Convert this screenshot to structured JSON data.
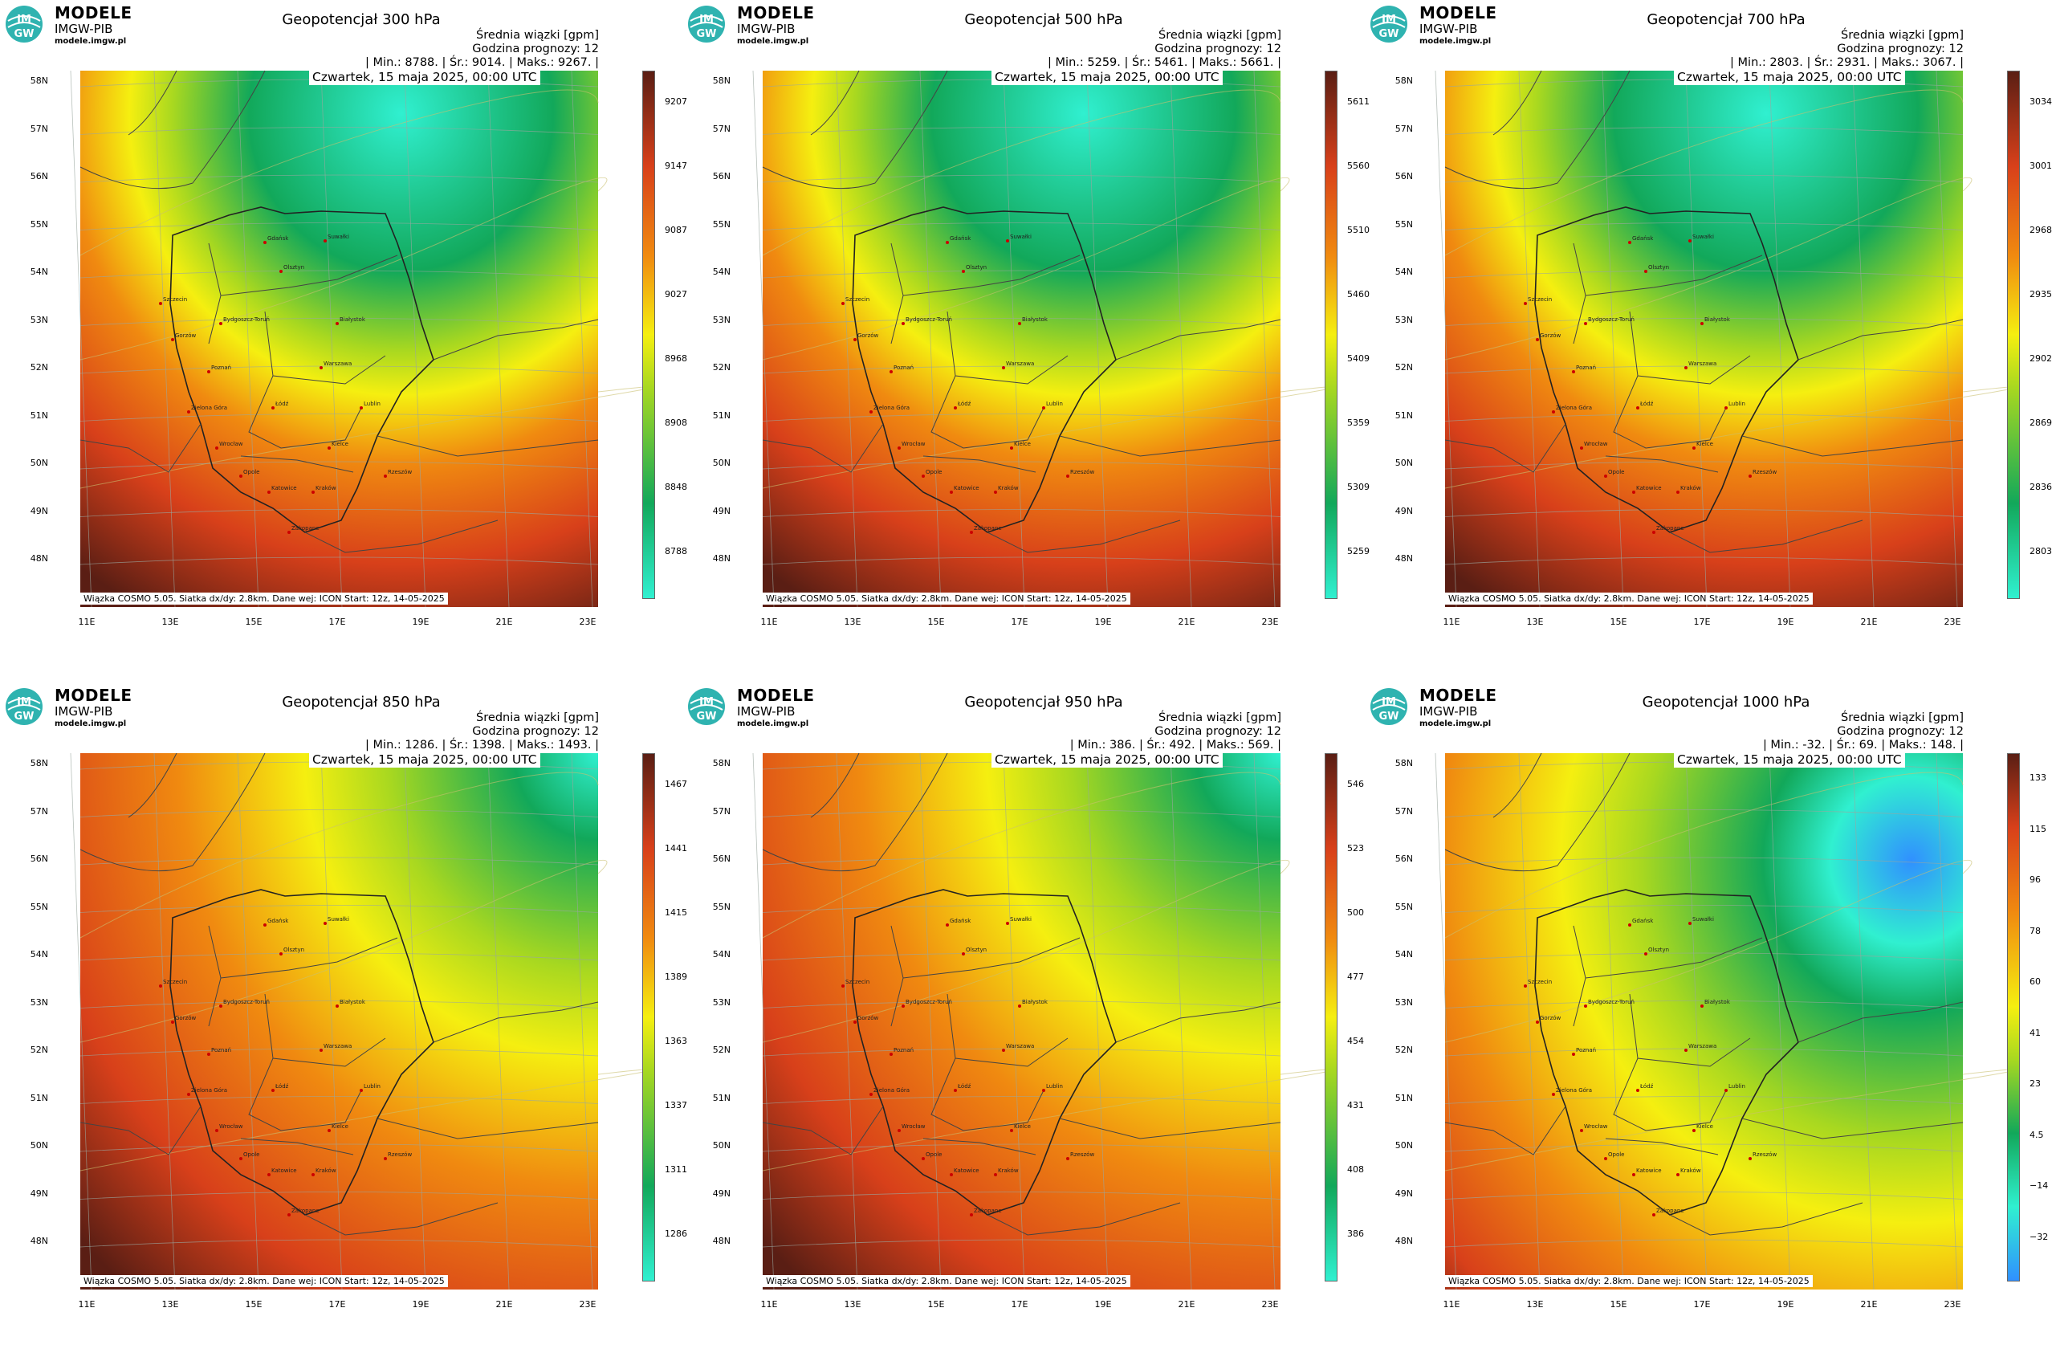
{
  "brand": {
    "name": "MODELE",
    "org": "IMGW-PIB",
    "url": "modele.imgw.pl",
    "logo_text_top": "IM",
    "logo_text_bottom": "GW"
  },
  "common": {
    "subtitle": "Średnia wiązki [gpm]",
    "forecast_hour": "Godzina prognozy: 12",
    "date": "Czwartek, 15 maja 2025, 00:00 UTC",
    "footer": "Wiązka COSMO 5.05. Siatka dx/dy: 2.8km. Dane wej: ICON Start: 12z, 14-05-2025",
    "lat_labels": [
      "58N",
      "57N",
      "56N",
      "55N",
      "54N",
      "53N",
      "52N",
      "51N",
      "50N",
      "49N",
      "48N"
    ],
    "lon_labels": [
      "11E",
      "13E",
      "15E",
      "17E",
      "19E",
      "21E",
      "23E"
    ]
  },
  "colors": {
    "brown": "#5a1e14",
    "red": "#d8401a",
    "orange": "#f08a10",
    "yellow": "#f5ef10",
    "green": "#12a85a",
    "cyan": "#30f0d0",
    "blue": "#3090ff"
  },
  "panels": [
    {
      "title": "Geopotencjał 300 hPa",
      "stats": "| Min.:     8788. | Śr.:     9014. | Maks.:     9267. |",
      "colorbar": [
        "9207",
        "9147",
        "9087",
        "9027",
        "8968",
        "8908",
        "8848",
        "8788"
      ],
      "type": "high"
    },
    {
      "title": "Geopotencjał 500 hPa",
      "stats": "| Min.:     5259. | Śr.:     5461. | Maks.:     5661. |",
      "colorbar": [
        "5611",
        "5560",
        "5510",
        "5460",
        "5409",
        "5359",
        "5309",
        "5259"
      ],
      "type": "high"
    },
    {
      "title": "Geopotencjał 700 hPa",
      "stats": "| Min.:     2803. | Śr.:     2931. | Maks.:     3067. |",
      "colorbar": [
        "3034",
        "3001",
        "2968",
        "2935",
        "2902",
        "2869",
        "2836",
        "2803"
      ],
      "type": "high"
    },
    {
      "title": "Geopotencjał 850 hPa",
      "stats": "| Min.:     1286. | Śr.:     1398. | Maks.:     1493. |",
      "colorbar": [
        "1467",
        "1441",
        "1415",
        "1389",
        "1363",
        "1337",
        "1311",
        "1286"
      ],
      "type": "low"
    },
    {
      "title": "Geopotencjał 950 hPa",
      "stats": "| Min.:       386. | Śr.:       492. | Maks.:       569. |",
      "colorbar": [
        "546",
        "523",
        "500",
        "477",
        "454",
        "431",
        "408",
        "386"
      ],
      "type": "low"
    },
    {
      "title": "Geopotencjał 1000 hPa",
      "stats": "| Min.:       -32. | Śr.:         69. | Maks.:       148. |",
      "colorbar": [
        "133",
        "115",
        "96",
        "78",
        "60",
        "41",
        "23",
        "4.5",
        "−14",
        "−32"
      ],
      "type": "sfc"
    }
  ],
  "cities": [
    "Gdańsk",
    "Suwałki",
    "Olsztyn",
    "Szczecin",
    "Bydgoszcz-Toruń",
    "Białystok",
    "Gorzów",
    "Poznań",
    "Warszawa",
    "Zielona Góra",
    "Łódź",
    "Lublin",
    "Wrocław",
    "Kielce",
    "Opole",
    "Rzeszów",
    "Katowice",
    "Kraków",
    "Zakopane"
  ]
}
